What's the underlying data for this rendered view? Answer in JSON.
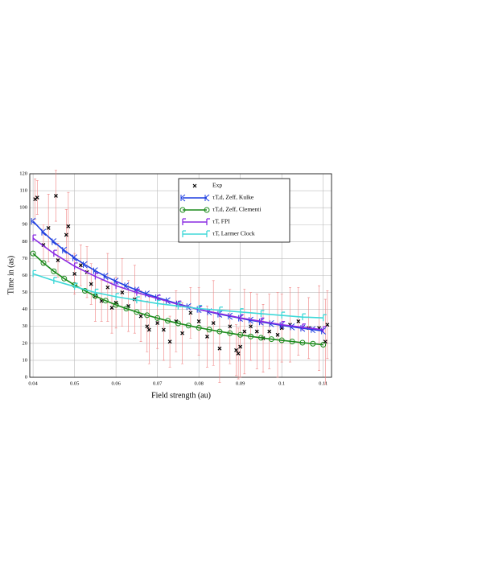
{
  "chart_data": {
    "type": "line",
    "xlabel": "Field strength (au)",
    "ylabel": "Time in (as)",
    "xlim": [
      0.0392,
      0.112
    ],
    "ylim": [
      0,
      120
    ],
    "xticks": [
      0.04,
      0.05,
      0.06,
      0.07,
      0.08,
      0.09,
      0.1,
      0.11
    ],
    "yticks": [
      0,
      10,
      20,
      30,
      40,
      50,
      60,
      70,
      80,
      90,
      100,
      110,
      120
    ],
    "grid": true,
    "legend": "top-center",
    "series": [
      {
        "name": "Exp",
        "color": "#000000",
        "marker": "x",
        "errorbar_color": "#f08080",
        "x": [
          0.0405,
          0.041,
          0.0425,
          0.0437,
          0.0455,
          0.046,
          0.048,
          0.0485,
          0.05,
          0.0515,
          0.053,
          0.054,
          0.055,
          0.0565,
          0.058,
          0.059,
          0.06,
          0.0615,
          0.063,
          0.0645,
          0.066,
          0.0675,
          0.068,
          0.07,
          0.0715,
          0.073,
          0.0745,
          0.076,
          0.078,
          0.08,
          0.082,
          0.0835,
          0.085,
          0.0875,
          0.089,
          0.0895,
          0.09,
          0.091,
          0.0925,
          0.094,
          0.0955,
          0.097,
          0.099,
          0.1,
          0.102,
          0.104,
          0.1065,
          0.109,
          0.1105,
          0.111
        ],
        "values": [
          105,
          106,
          78,
          88,
          107,
          69,
          84,
          89,
          61,
          66,
          62,
          55,
          48,
          45,
          53,
          41,
          44,
          50,
          42,
          46,
          36,
          30,
          28,
          32,
          28,
          21,
          33,
          26,
          38,
          33,
          24,
          32,
          17,
          30,
          16,
          14,
          18,
          27,
          30,
          27,
          23,
          27,
          25,
          29,
          31,
          33,
          29,
          29,
          21,
          31
        ],
        "errors": [
          12,
          10,
          12,
          20,
          15,
          10,
          15,
          20,
          12,
          12,
          15,
          12,
          15,
          12,
          20,
          15,
          15,
          20,
          15,
          20,
          15,
          15,
          20,
          15,
          18,
          15,
          18,
          18,
          15,
          20,
          18,
          25,
          20,
          22,
          15,
          15,
          18,
          25,
          20,
          22,
          20,
          22,
          25,
          20,
          22,
          20,
          18,
          25,
          25,
          20
        ]
      },
      {
        "name": "τT,d, Zeff, Kulke",
        "color": "#1f3fe0",
        "marker": "arrow",
        "line": true,
        "x": [
          0.04,
          0.0425,
          0.045,
          0.0475,
          0.05,
          0.0525,
          0.055,
          0.0575,
          0.06,
          0.0625,
          0.065,
          0.0675,
          0.07,
          0.0725,
          0.075,
          0.0775,
          0.08,
          0.0825,
          0.085,
          0.0875,
          0.09,
          0.0925,
          0.095,
          0.0975,
          0.1,
          0.1025,
          0.105,
          0.1075,
          0.11
        ],
        "values": [
          92,
          85.5,
          79.9,
          74.9,
          70.4,
          66.4,
          62.8,
          59.5,
          56.6,
          53.9,
          51.4,
          49.1,
          47.0,
          45.1,
          43.3,
          41.6,
          40.0,
          38.6,
          37.2,
          36.0,
          34.8,
          33.6,
          32.6,
          31.6,
          30.6,
          29.7,
          28.9,
          28.1,
          27.3
        ]
      },
      {
        "name": "τT,d, Zeff, Clementi",
        "color": "#1a8a1a",
        "marker": "circle",
        "line": true,
        "x": [
          0.04,
          0.0425,
          0.045,
          0.0475,
          0.05,
          0.0525,
          0.055,
          0.0575,
          0.06,
          0.0625,
          0.065,
          0.0675,
          0.07,
          0.0725,
          0.075,
          0.0775,
          0.08,
          0.0825,
          0.085,
          0.0875,
          0.09,
          0.0925,
          0.095,
          0.0975,
          0.1,
          0.1025,
          0.105,
          0.1075,
          0.11
        ],
        "values": [
          73,
          67.4,
          62.5,
          58.2,
          54.4,
          51.0,
          47.9,
          45.2,
          42.7,
          40.5,
          38.5,
          36.6,
          34.9,
          33.3,
          31.8,
          30.5,
          29.2,
          28.1,
          27.0,
          26.0,
          25.0,
          24.1,
          23.3,
          22.5,
          21.8,
          21.1,
          20.4,
          19.8,
          19.2
        ]
      },
      {
        "name": "τT, FPI",
        "color": "#8a2be2",
        "marker": "tee",
        "line": true,
        "x": [
          0.04,
          0.045,
          0.05,
          0.055,
          0.06,
          0.065,
          0.07,
          0.075,
          0.08,
          0.085,
          0.09,
          0.095,
          0.1,
          0.105,
          0.11
        ],
        "values": [
          82,
          73,
          65.5,
          59.5,
          54,
          50,
          46.5,
          43,
          40,
          37.5,
          35,
          33,
          31,
          29.5,
          28
        ]
      },
      {
        "name": "τT, Larmer Clock",
        "color": "#40d8d8",
        "marker": "tee",
        "line": true,
        "x": [
          0.04,
          0.045,
          0.05,
          0.055,
          0.06,
          0.065,
          0.07,
          0.075,
          0.08,
          0.085,
          0.09,
          0.095,
          0.1,
          0.105,
          0.11
        ],
        "values": [
          61,
          57,
          53.5,
          50,
          47.5,
          45.5,
          43.5,
          42,
          40.5,
          39.5,
          38.5,
          37.5,
          36.5,
          35.5,
          35
        ]
      }
    ]
  }
}
